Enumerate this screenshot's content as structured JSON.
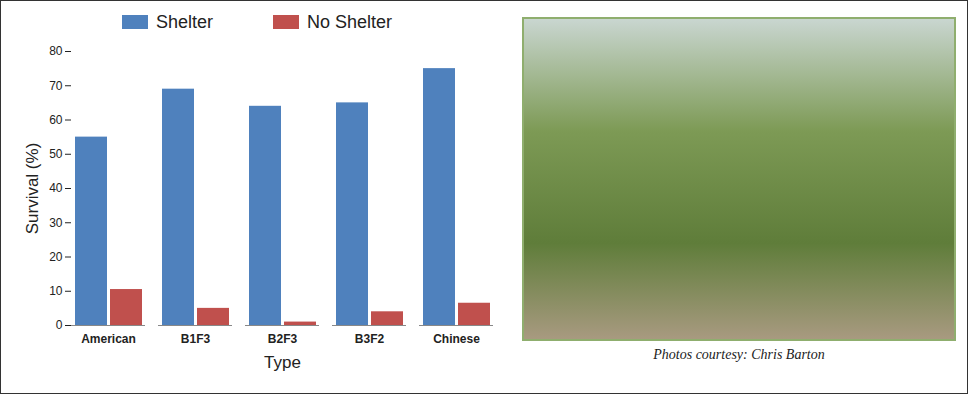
{
  "chart_data": {
    "type": "bar",
    "x_label": "Type",
    "y_label": "Survival (%)",
    "categories": [
      "American",
      "B1F3",
      "B2F3",
      "B3F2",
      "Chinese"
    ],
    "series": [
      {
        "name": "Shelter",
        "color": "#4f81bd",
        "values": [
          55,
          69,
          64,
          65,
          75
        ]
      },
      {
        "name": "No Shelter",
        "color": "#c0504d",
        "values": [
          10.5,
          5,
          1,
          4,
          6.5
        ]
      }
    ],
    "ylim": [
      0,
      80
    ],
    "yticks": [
      0,
      10,
      20,
      30,
      40,
      50,
      60,
      70,
      80
    ],
    "grid": false,
    "legend": "top",
    "annotations": [
      "Photos courtesy: Chris Barton"
    ]
  }
}
